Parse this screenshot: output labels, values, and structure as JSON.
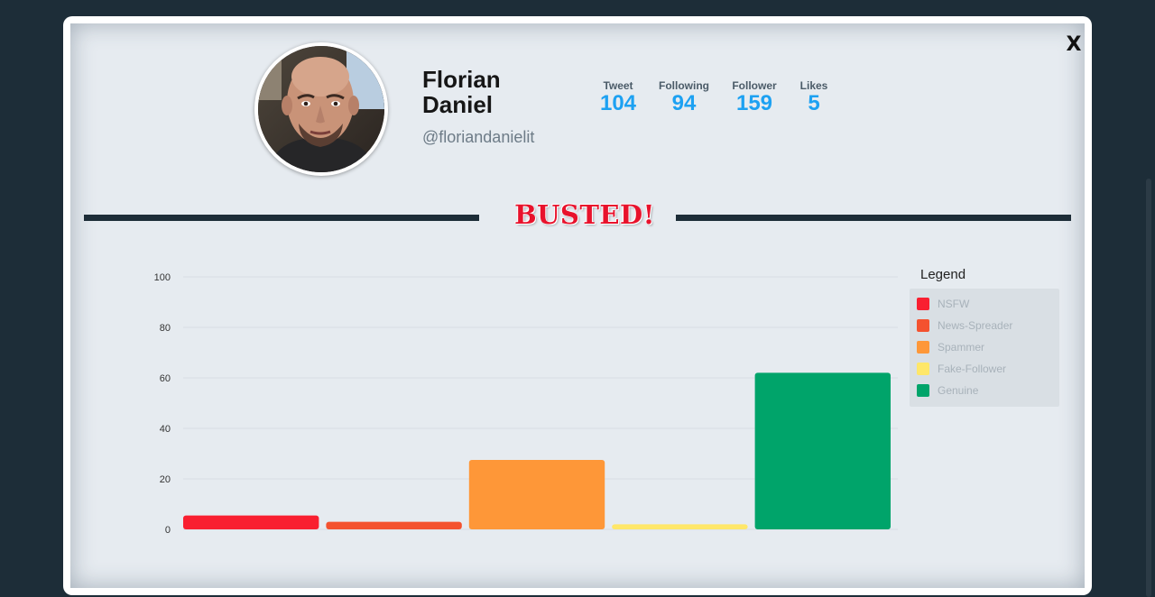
{
  "modal": {
    "close_label": "X"
  },
  "profile": {
    "name": "Florian Daniel",
    "handle": "@floriandanielit",
    "stats": [
      {
        "label": "Tweet",
        "value": "104"
      },
      {
        "label": "Following",
        "value": "94"
      },
      {
        "label": "Follower",
        "value": "159"
      },
      {
        "label": "Likes",
        "value": "5"
      }
    ]
  },
  "verdict": "BUSTED!",
  "legend": {
    "title": "Legend",
    "items": [
      {
        "label": "NSFW",
        "color": "#f91f30"
      },
      {
        "label": "News-Spreader",
        "color": "#f4522f"
      },
      {
        "label": "Spammer",
        "color": "#fe9738"
      },
      {
        "label": "Fake-Follower",
        "color": "#ffe769"
      },
      {
        "label": "Genuine",
        "color": "#00a46a"
      }
    ]
  },
  "chart_data": {
    "type": "bar",
    "categories": [
      "NSFW",
      "News-Spreader",
      "Spammer",
      "Fake-Follower",
      "Genuine"
    ],
    "values": [
      5.5,
      3,
      27.5,
      2,
      62
    ],
    "colors": [
      "#f91f30",
      "#f4522f",
      "#fe9738",
      "#ffe769",
      "#00a46a"
    ],
    "ylim": [
      0,
      100
    ],
    "yticks": [
      0,
      20,
      40,
      60,
      80,
      100
    ],
    "grid": true,
    "legend": "right"
  }
}
